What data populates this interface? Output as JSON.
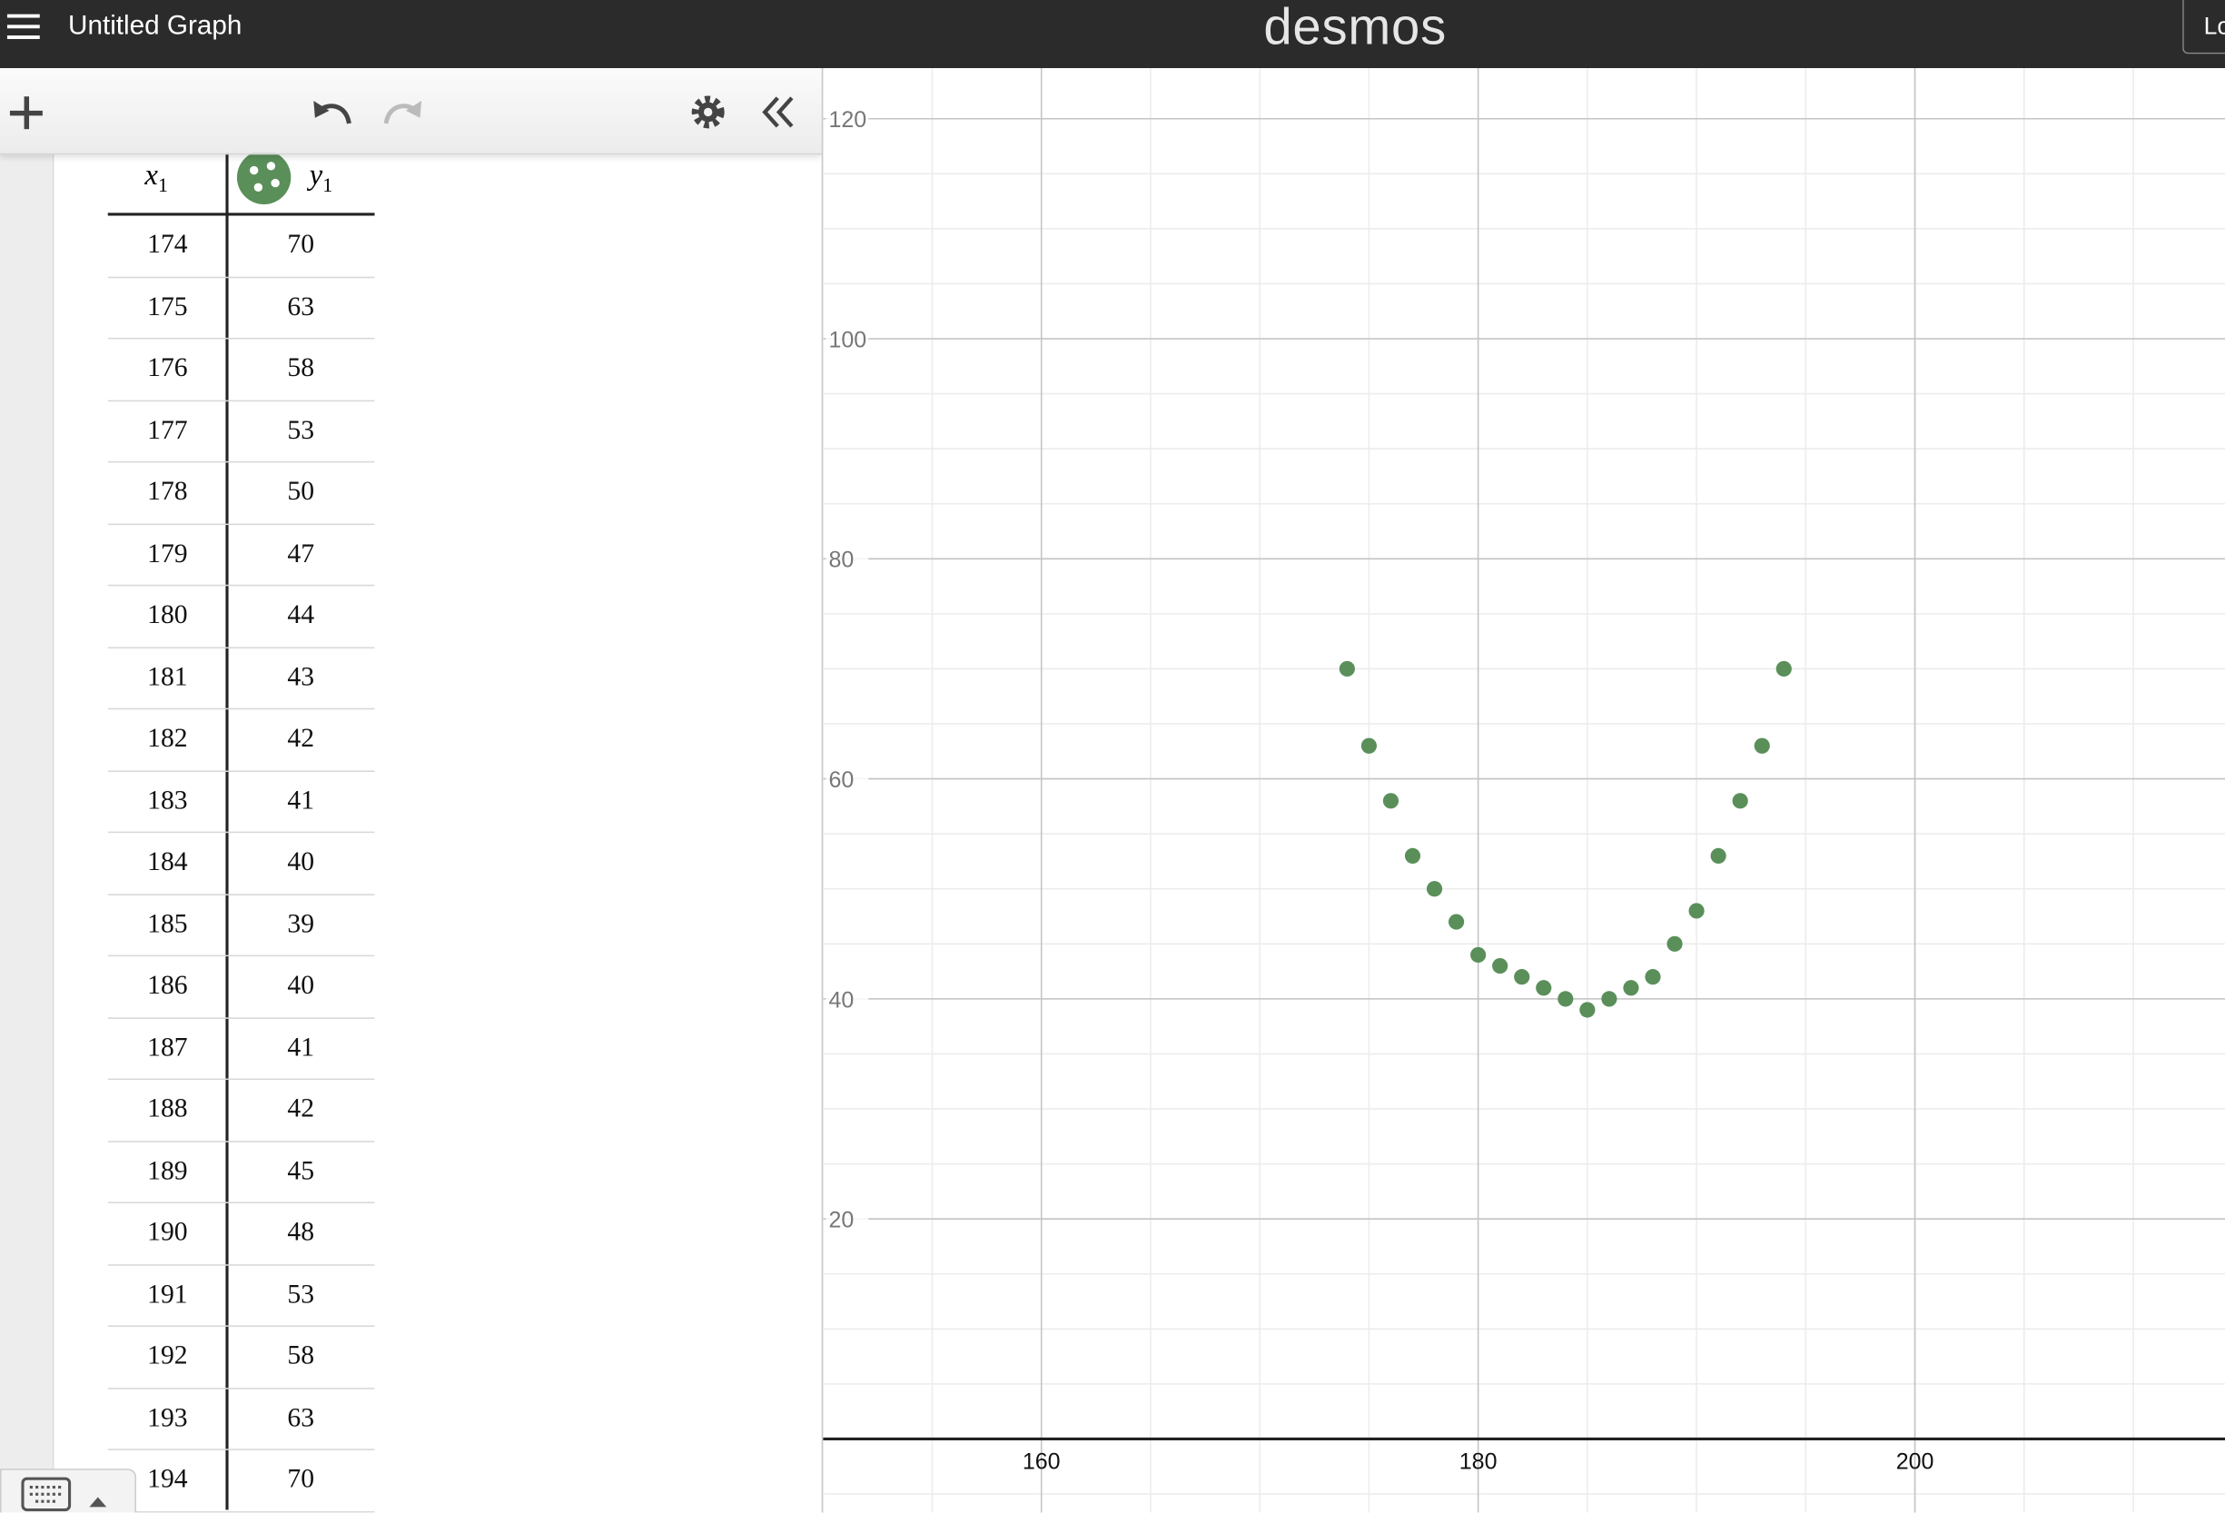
{
  "header": {
    "title": "Untitled Graph",
    "logo": "desmos",
    "login": "Log In"
  },
  "table": {
    "columns": [
      {
        "name": "x",
        "subscript": "1"
      },
      {
        "name": "y",
        "subscript": "1"
      }
    ]
  },
  "chart_data": {
    "type": "scatter",
    "x": [
      174,
      175,
      176,
      177,
      178,
      179,
      180,
      181,
      182,
      183,
      184,
      185,
      186,
      187,
      188,
      189,
      190,
      191,
      192,
      193,
      194
    ],
    "series": [
      {
        "color": "#5a8f5a",
        "values": [
          70,
          63,
          58,
          53,
          50,
          47,
          44,
          43,
          42,
          41,
          40,
          39,
          40,
          41,
          42,
          45,
          48,
          53,
          58,
          63,
          70
        ]
      }
    ],
    "xlim": [
      150,
      214.2
    ],
    "ylim": [
      -6.7,
      124.6
    ],
    "xticks": [
      160,
      180,
      200
    ],
    "yticks": [
      20,
      40,
      60,
      80,
      100,
      120
    ],
    "grid": true
  }
}
